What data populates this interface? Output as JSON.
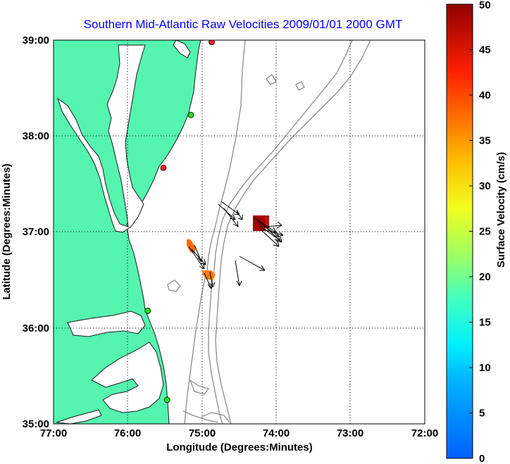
{
  "title": "Southern Mid-Atlantic Raw Velocities 2009/01/01 2000 GMT",
  "map": {
    "xlabel": "Longitude (Degrees:Minutes)",
    "ylabel": "Latitude (Degrees:Minutes)",
    "x_ticks": [
      "77:00",
      "76:00",
      "75:00",
      "74:00",
      "73:00",
      "72:00"
    ],
    "y_ticks": [
      "39:00",
      "38:00",
      "37:00",
      "36:00",
      "35:00"
    ],
    "lon_range": [
      -77,
      -72
    ],
    "lat_range": [
      35,
      39
    ],
    "land_color": "#55f5b0",
    "grid": "dotted"
  },
  "colorbar": {
    "label": "Surface Velocity (cm/s)",
    "ticks": [
      "0",
      "5",
      "10",
      "15",
      "20",
      "25",
      "30",
      "35",
      "40",
      "45",
      "50"
    ],
    "range": [
      0,
      50
    ],
    "colormap": "jet"
  },
  "stations": [
    {
      "lon": -74.87,
      "lat": 38.98,
      "color": "#ff2020"
    },
    {
      "lon": -75.15,
      "lat": 38.22,
      "color": "#20e020"
    },
    {
      "lon": -75.52,
      "lat": 37.67,
      "color": "#ff2020"
    },
    {
      "lon": -75.73,
      "lat": 36.18,
      "color": "#20e020"
    },
    {
      "lon": -75.47,
      "lat": 35.25,
      "color": "#20e020"
    }
  ]
}
